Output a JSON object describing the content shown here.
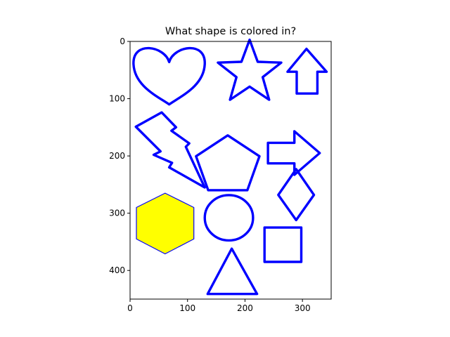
{
  "chart_data": {
    "type": "image",
    "title": "What shape is colored in?",
    "xlim": [
      0,
      350
    ],
    "ylim": [
      450,
      0
    ],
    "xticks": [
      0,
      100,
      200,
      300
    ],
    "yticks": [
      0,
      100,
      200,
      300,
      400
    ],
    "grid": false,
    "outline_color": "#0000ff",
    "fill_color": "#ffff00",
    "colored_shape": "hexagon",
    "shapes": [
      {
        "name": "heart",
        "filled": false
      },
      {
        "name": "star",
        "filled": false
      },
      {
        "name": "up-arrow",
        "filled": false
      },
      {
        "name": "lightning-bolt",
        "filled": false
      },
      {
        "name": "pentagon",
        "filled": false
      },
      {
        "name": "right-arrow",
        "filled": false
      },
      {
        "name": "diamond",
        "filled": false
      },
      {
        "name": "hexagon",
        "filled": true
      },
      {
        "name": "circle",
        "filled": false
      },
      {
        "name": "rectangle",
        "filled": false
      },
      {
        "name": "triangle",
        "filled": false
      }
    ]
  }
}
